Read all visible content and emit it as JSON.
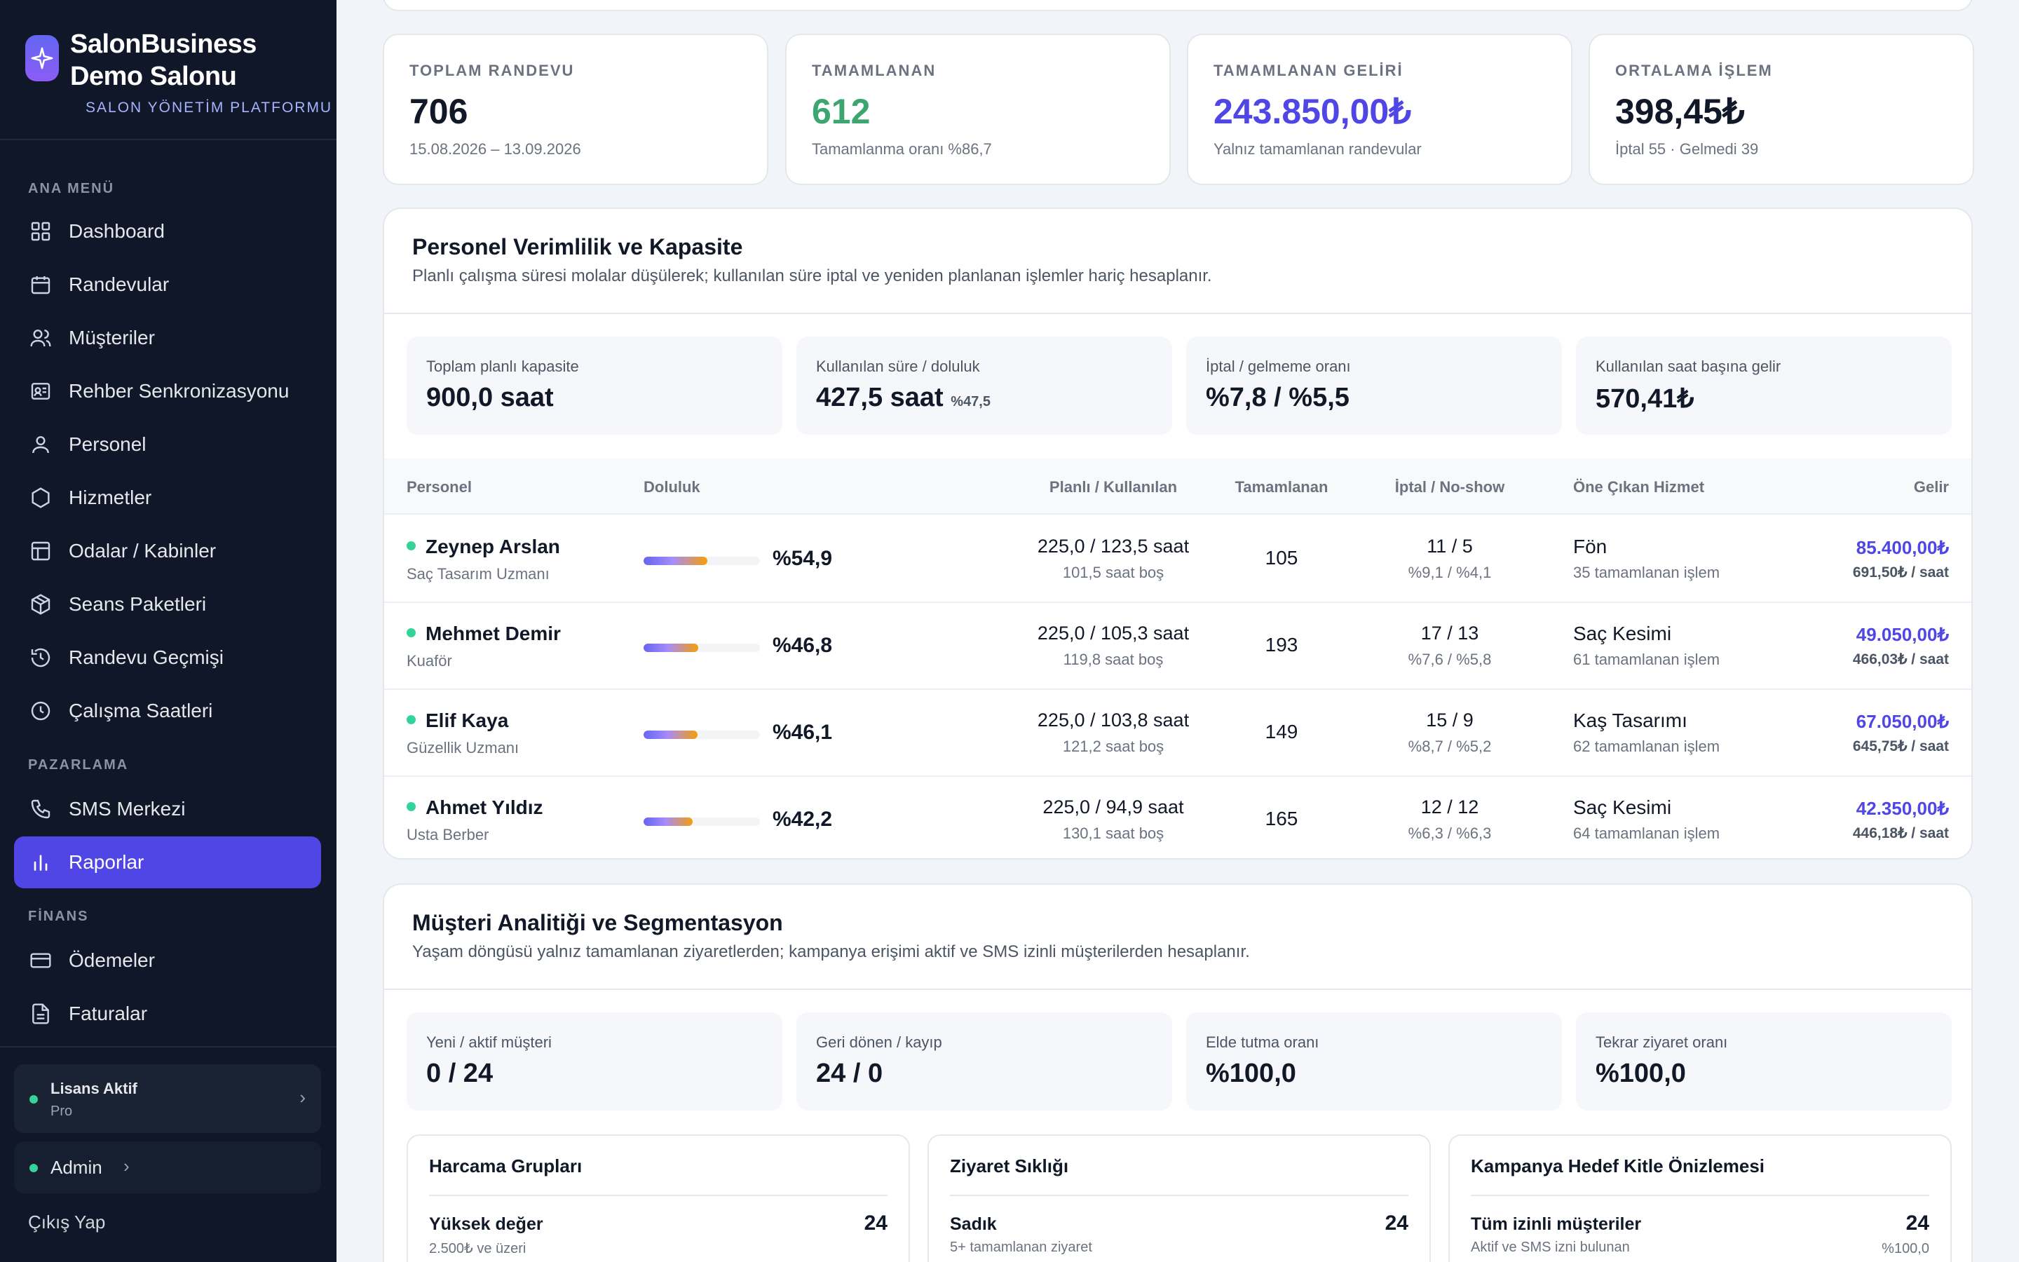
{
  "brand": {
    "name_line1": "SalonBusiness",
    "name_line2": "Demo Salonu",
    "subtitle": "SALON YÖNETİM PLATFORMU"
  },
  "sidebar": {
    "sections": [
      {
        "heading": "ANA MENÜ"
      },
      {
        "heading": "PAZARLAMA"
      },
      {
        "heading": "FİNANS"
      }
    ],
    "items": [
      {
        "label": "Dashboard",
        "icon": "grid-icon"
      },
      {
        "label": "Randevular",
        "icon": "calendar-icon"
      },
      {
        "label": "Müşteriler",
        "icon": "users-icon"
      },
      {
        "label": "Rehber Senkronizasyonu",
        "icon": "contact-card-icon"
      },
      {
        "label": "Personel",
        "icon": "user-icon"
      },
      {
        "label": "Hizmetler",
        "icon": "hexagon-icon"
      },
      {
        "label": "Odalar / Kabinler",
        "icon": "layout-icon"
      },
      {
        "label": "Seans Paketleri",
        "icon": "package-icon"
      },
      {
        "label": "Randevu Geçmişi",
        "icon": "history-icon"
      },
      {
        "label": "Çalışma Saatleri",
        "icon": "clock-icon"
      },
      {
        "label": "SMS Merkezi",
        "icon": "phone-icon"
      },
      {
        "label": "Raporlar",
        "icon": "bar-chart-icon",
        "active": true
      },
      {
        "label": "Ödemeler",
        "icon": "credit-card-icon"
      },
      {
        "label": "Faturalar",
        "icon": "file-icon"
      }
    ],
    "license": {
      "title": "Lisans Aktif",
      "plan": "Pro"
    },
    "admin": {
      "label": "Admin"
    },
    "logout": "Çıkış Yap"
  },
  "stats": [
    {
      "label": "TOPLAM RANDEVU",
      "value": "706",
      "sub": "15.08.2026 – 13.09.2026",
      "color": "#111827"
    },
    {
      "label": "TAMAMLANAN",
      "value": "612",
      "sub": "Tamamlanma oranı %86,7",
      "color": "#22a06b"
    },
    {
      "label": "TAMAMLANAN GELİRİ",
      "value": "243.850,00₺",
      "sub": "Yalnız tamamlanan randevular",
      "color": "#4f46e5"
    },
    {
      "label": "ORTALAMA İŞLEM",
      "value": "398,45₺",
      "sub": "İptal 55 · Gelmedi 39",
      "color": "#111827"
    }
  ],
  "staff_panel": {
    "title": "Personel Verimlilik ve Kapasite",
    "description": "Planlı çalışma süresi molalar düşülerek; kullanılan süre iptal ve yeniden planlanan işlemler hariç hesaplanır.",
    "kpis": [
      {
        "label": "Toplam planlı kapasite",
        "value": "900,0 saat",
        "extra": ""
      },
      {
        "label": "Kullanılan süre / doluluk",
        "value": "427,5 saat",
        "extra": "%47,5"
      },
      {
        "label": "İptal / gelmeme oranı",
        "value": "%7,8 / %5,5",
        "extra": ""
      },
      {
        "label": "Kullanılan saat başına gelir",
        "value": "570,41₺",
        "extra": ""
      }
    ],
    "columns": [
      "Personel",
      "Doluluk",
      "Planlı / Kullanılan",
      "Tamamlanan",
      "İptal / No-show",
      "Öne Çıkan Hizmet",
      "Gelir"
    ],
    "rows": [
      {
        "name": "Zeynep Arslan",
        "role": "Saç Tasarım Uzmanı",
        "occupancy": 54.9,
        "occupancy_label": "%54,9",
        "planned_used": "225,0 / 123,5 saat",
        "free": "101,5 saat boş",
        "completed": "105",
        "cancel_noshow": "11 / 5",
        "cancel_rates": "%9,1 / %4,1",
        "service": "Fön",
        "service_sub": "35 tamamlanan işlem",
        "revenue": "85.400,00₺",
        "per_hour": "691,50₺ / saat"
      },
      {
        "name": "Mehmet Demir",
        "role": "Kuaför",
        "occupancy": 46.8,
        "occupancy_label": "%46,8",
        "planned_used": "225,0 / 105,3 saat",
        "free": "119,8 saat boş",
        "completed": "193",
        "cancel_noshow": "17 / 13",
        "cancel_rates": "%7,6 / %5,8",
        "service": "Saç Kesimi",
        "service_sub": "61 tamamlanan işlem",
        "revenue": "49.050,00₺",
        "per_hour": "466,03₺ / saat"
      },
      {
        "name": "Elif Kaya",
        "role": "Güzellik Uzmanı",
        "occupancy": 46.1,
        "occupancy_label": "%46,1",
        "planned_used": "225,0 / 103,8 saat",
        "free": "121,2 saat boş",
        "completed": "149",
        "cancel_noshow": "15 / 9",
        "cancel_rates": "%8,7 / %5,2",
        "service": "Kaş Tasarımı",
        "service_sub": "62 tamamlanan işlem",
        "revenue": "67.050,00₺",
        "per_hour": "645,75₺ / saat"
      },
      {
        "name": "Ahmet Yıldız",
        "role": "Usta Berber",
        "occupancy": 42.2,
        "occupancy_label": "%42,2",
        "planned_used": "225,0 / 94,9 saat",
        "free": "130,1 saat boş",
        "completed": "165",
        "cancel_noshow": "12 / 12",
        "cancel_rates": "%6,3 / %6,3",
        "service": "Saç Kesimi",
        "service_sub": "64 tamamlanan işlem",
        "revenue": "42.350,00₺",
        "per_hour": "446,18₺ / saat"
      }
    ]
  },
  "customer_panel": {
    "title": "Müşteri Analitiği ve Segmentasyon",
    "description": "Yaşam döngüsü yalnız tamamlanan ziyaretlerden; kampanya erişimi aktif ve SMS izinli müşterilerden hesaplanır.",
    "kpis": [
      {
        "label": "Yeni / aktif müşteri",
        "value": "0 / 24"
      },
      {
        "label": "Geri dönen / kayıp",
        "value": "24 / 0"
      },
      {
        "label": "Elde tutma oranı",
        "value": "%100,0"
      },
      {
        "label": "Tekrar ziyaret oranı",
        "value": "%100,0"
      }
    ],
    "cards": [
      {
        "title": "Harcama Grupları",
        "row_label": "Yüksek değer",
        "row_sub": "2.500₺ ve üzeri",
        "row_value": "24",
        "row_value_sub": ""
      },
      {
        "title": "Ziyaret Sıklığı",
        "row_label": "Sadık",
        "row_sub": "5+ tamamlanan ziyaret",
        "row_value": "24",
        "row_value_sub": ""
      },
      {
        "title": "Kampanya Hedef Kitle Önizlemesi",
        "row_label": "Tüm izinli müşteriler",
        "row_sub": "Aktif ve SMS izni bulunan",
        "row_value": "24",
        "row_value_sub": "%100,0"
      }
    ]
  }
}
